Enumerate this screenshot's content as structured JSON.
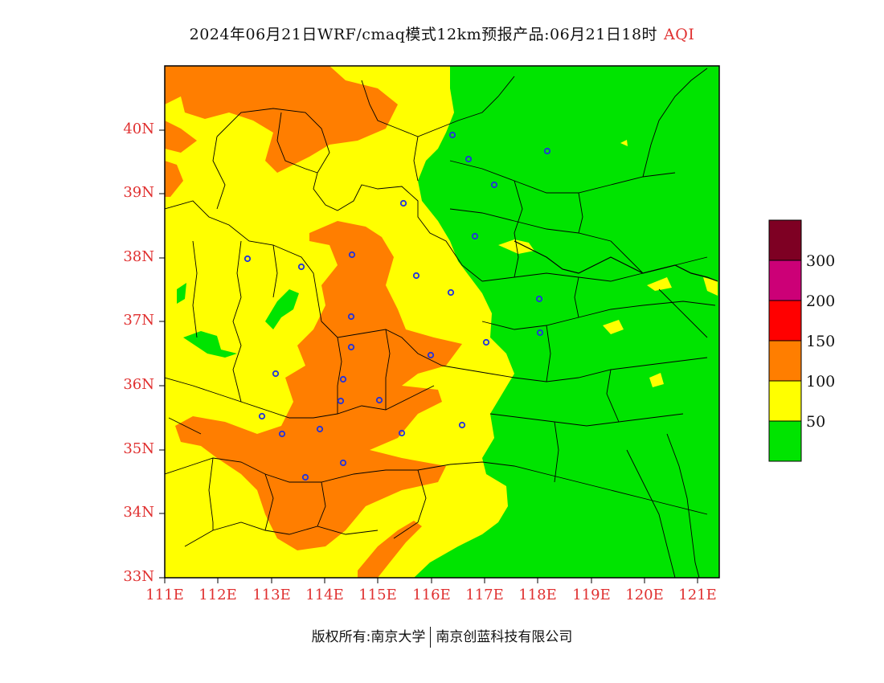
{
  "title": {
    "main": "2024年06月21日WRF/cmaq模式12km预报产品:06月21日18时",
    "variable": "AQI"
  },
  "map": {
    "lat_labels": [
      "40N",
      "39N",
      "38N",
      "37N",
      "36N",
      "35N",
      "34N",
      "33N"
    ],
    "lon_labels": [
      "111E",
      "112E",
      "113E",
      "114E",
      "115E",
      "116E",
      "117E",
      "118E",
      "119E",
      "120E",
      "121E"
    ],
    "colors": {
      "good": "#00e400",
      "moderate": "#ffff00",
      "usg": "#ff7e00",
      "unhealthy": "#ff0000",
      "very_unhealthy": "#cc0077",
      "hazardous": "#7e0023",
      "boundary": "#000000",
      "station": "#2233dd"
    },
    "lon_range": [
      111,
      121.4
    ],
    "lat_range": [
      33,
      41
    ]
  },
  "legend": {
    "labels": [
      "300",
      "200",
      "150",
      "100",
      "50"
    ],
    "colors": [
      "#7e0023",
      "#cc0077",
      "#ff0000",
      "#ff7e00",
      "#ffff00",
      "#00e400"
    ]
  },
  "footer": {
    "left": "版权所有:南京大学",
    "right": "南京创蓝科技有限公司"
  }
}
